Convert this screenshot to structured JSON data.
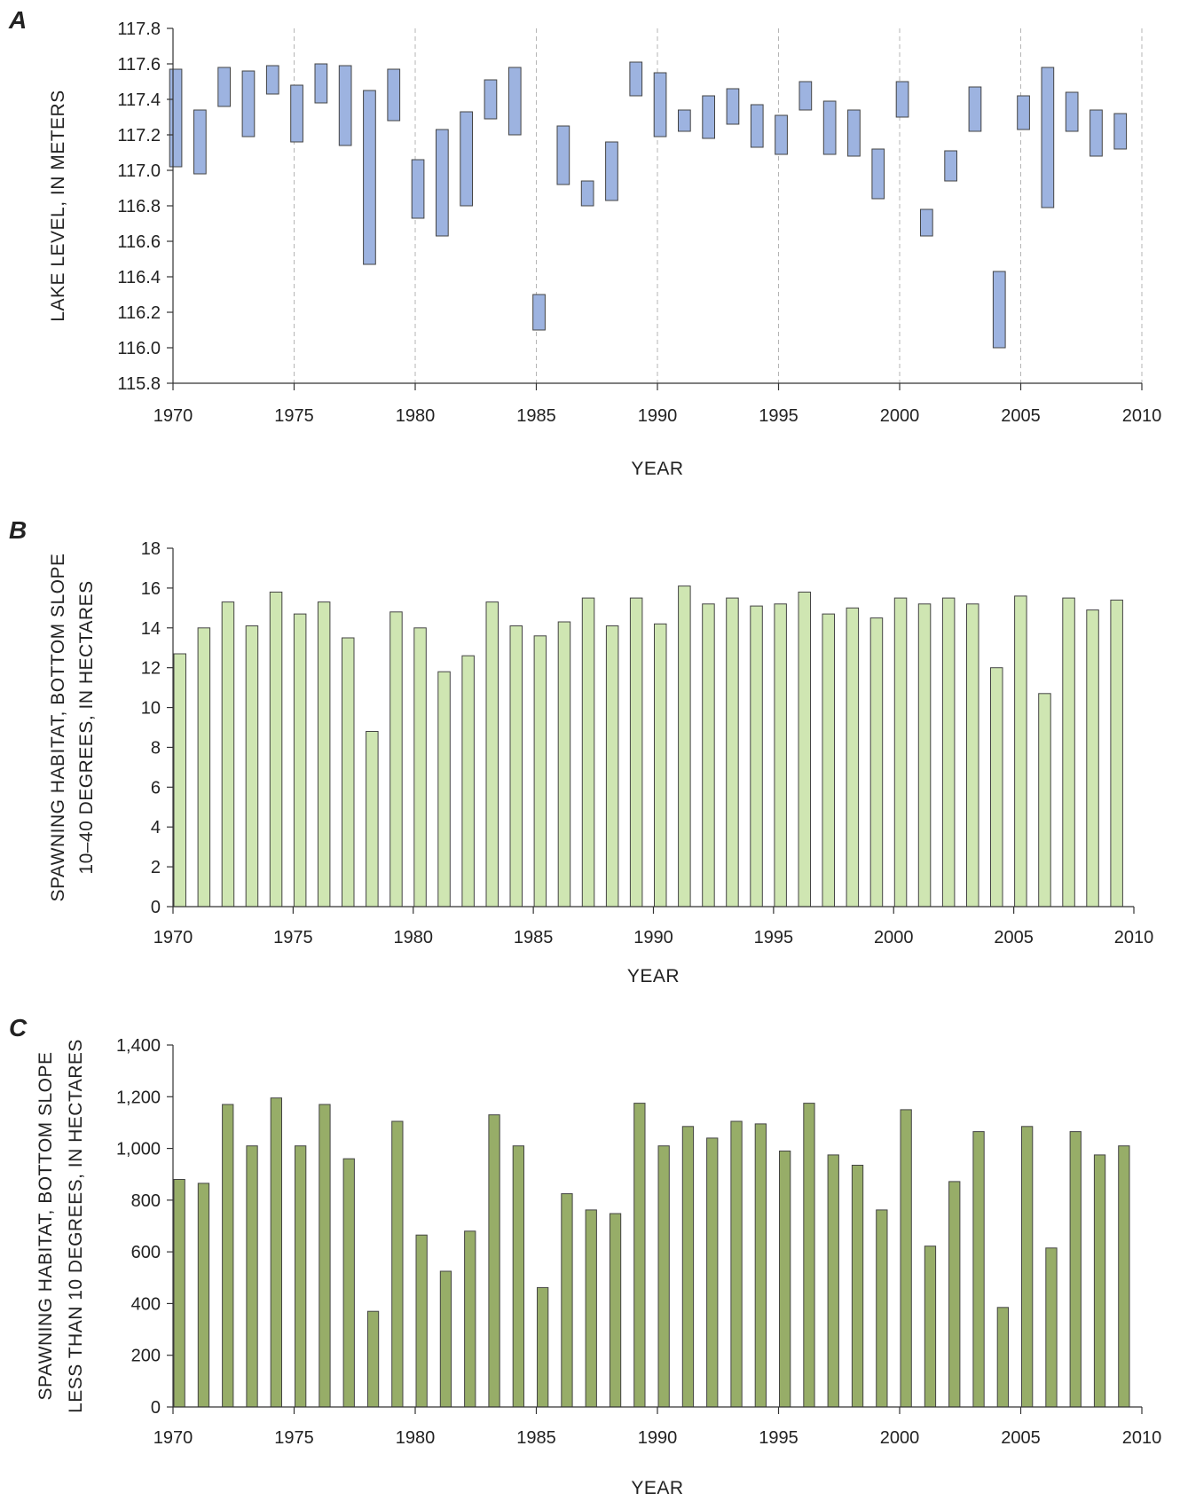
{
  "chart_data": [
    {
      "panel": "A",
      "type": "floating-bar",
      "title": "",
      "xlabel": "YEAR",
      "ylabel": "LAKE LEVEL, IN METERS",
      "xlim": [
        1970,
        2010
      ],
      "ylim": [
        115.8,
        117.8
      ],
      "x_ticks": [
        "1970",
        "1975",
        "1980",
        "1985",
        "1990",
        "1995",
        "2000",
        "2005",
        "2010"
      ],
      "y_ticks": [
        "115.8",
        "116.0",
        "116.2",
        "116.4",
        "116.6",
        "116.8",
        "117.0",
        "117.2",
        "117.4",
        "117.6",
        "117.8"
      ],
      "grid": "vertical dashed at 5-year ticks",
      "bar_color": "#9db3e0",
      "x": [
        1970,
        1971,
        1972,
        1973,
        1974,
        1975,
        1976,
        1977,
        1978,
        1979,
        1980,
        1981,
        1982,
        1983,
        1984,
        1985,
        1986,
        1987,
        1988,
        1989,
        1990,
        1991,
        1992,
        1993,
        1994,
        1995,
        1996,
        1997,
        1998,
        1999,
        2000,
        2001,
        2002,
        2003,
        2004,
        2005,
        2006,
        2007,
        2008,
        2009
      ],
      "low": [
        117.02,
        116.98,
        117.36,
        117.19,
        117.43,
        117.16,
        117.38,
        117.14,
        116.47,
        117.28,
        116.73,
        116.63,
        116.8,
        117.29,
        117.2,
        116.1,
        116.92,
        116.8,
        116.83,
        117.42,
        117.19,
        117.22,
        117.18,
        117.26,
        117.13,
        117.09,
        117.34,
        117.09,
        117.08,
        116.84,
        117.3,
        116.63,
        116.94,
        117.22,
        116.0,
        117.23,
        116.79,
        117.22,
        117.08,
        117.12
      ],
      "high": [
        117.57,
        117.34,
        117.58,
        117.56,
        117.59,
        117.48,
        117.6,
        117.59,
        117.45,
        117.57,
        117.06,
        117.23,
        117.33,
        117.51,
        117.58,
        116.3,
        117.25,
        116.94,
        117.16,
        117.61,
        117.55,
        117.34,
        117.42,
        117.46,
        117.37,
        117.31,
        117.5,
        117.39,
        117.34,
        117.12,
        117.5,
        116.78,
        117.11,
        117.47,
        116.43,
        117.42,
        117.58,
        117.44,
        117.34,
        117.32
      ]
    },
    {
      "panel": "B",
      "type": "bar",
      "title": "",
      "xlabel": "YEAR",
      "ylabel": "SPAWNING HABITAT, BOTTOM SLOPE",
      "ylabel2": "10–40 DEGREES, IN HECTARES",
      "xlim": [
        1970,
        2010
      ],
      "ylim": [
        0,
        18
      ],
      "x_ticks": [
        "1970",
        "1975",
        "1980",
        "1985",
        "1990",
        "1995",
        "2000",
        "2005",
        "2010"
      ],
      "y_ticks": [
        "0",
        "2",
        "4",
        "6",
        "8",
        "10",
        "12",
        "14",
        "16",
        "18"
      ],
      "grid": "off",
      "bar_color": "#cfe6b2",
      "x": [
        1970,
        1971,
        1972,
        1973,
        1974,
        1975,
        1976,
        1977,
        1978,
        1979,
        1980,
        1981,
        1982,
        1983,
        1984,
        1985,
        1986,
        1987,
        1988,
        1989,
        1990,
        1991,
        1992,
        1993,
        1994,
        1995,
        1996,
        1997,
        1998,
        1999,
        2000,
        2001,
        2002,
        2003,
        2004,
        2005,
        2006,
        2007,
        2008,
        2009
      ],
      "values": [
        12.7,
        14.0,
        15.3,
        14.1,
        15.8,
        14.7,
        15.3,
        13.5,
        8.8,
        14.8,
        14.0,
        11.8,
        12.6,
        15.3,
        14.1,
        13.6,
        14.3,
        15.5,
        14.1,
        15.5,
        14.2,
        16.1,
        15.2,
        15.5,
        15.1,
        15.2,
        15.8,
        14.7,
        15.0,
        14.5,
        15.5,
        15.2,
        15.5,
        15.2,
        12.0,
        15.6,
        10.7,
        15.5,
        14.9,
        15.4
      ]
    },
    {
      "panel": "C",
      "type": "bar",
      "title": "",
      "xlabel": "YEAR",
      "ylabel": "SPAWNING HABITAT, BOTTOM SLOPE",
      "ylabel2": "LESS THAN 10 DEGREES,  IN HECTARES",
      "xlim": [
        1970,
        2010
      ],
      "ylim": [
        0,
        1400
      ],
      "x_ticks": [
        "1970",
        "1975",
        "1980",
        "1985",
        "1990",
        "1995",
        "2000",
        "2005",
        "2010"
      ],
      "y_ticks": [
        "0",
        "200",
        "400",
        "600",
        "800",
        "1,000",
        "1,200",
        "1,400"
      ],
      "grid": "off",
      "bar_color": "#97ad68",
      "x": [
        1970,
        1971,
        1972,
        1973,
        1974,
        1975,
        1976,
        1977,
        1978,
        1979,
        1980,
        1981,
        1982,
        1983,
        1984,
        1985,
        1986,
        1987,
        1988,
        1989,
        1990,
        1991,
        1992,
        1993,
        1994,
        1995,
        1996,
        1997,
        1998,
        1999,
        2000,
        2001,
        2002,
        2003,
        2004,
        2005,
        2006,
        2007,
        2008,
        2009
      ],
      "values": [
        880,
        865,
        1170,
        1010,
        1195,
        1010,
        1170,
        960,
        370,
        1105,
        665,
        525,
        680,
        1130,
        1010,
        462,
        825,
        762,
        748,
        1175,
        1010,
        1085,
        1040,
        1105,
        1095,
        990,
        1175,
        975,
        935,
        762,
        1150,
        622,
        872,
        1065,
        385,
        1085,
        615,
        1065,
        975,
        1010
      ]
    }
  ]
}
